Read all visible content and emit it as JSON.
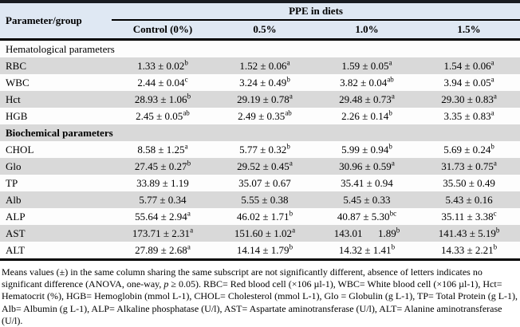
{
  "table": {
    "header": {
      "param_col": "Parameter/group",
      "group_title": "PPE in diets",
      "columns": [
        "Control (0%)",
        "0.5%",
        "1.0%",
        "1.5%"
      ]
    },
    "rows": [
      {
        "type": "section",
        "label": "Hematological parameters",
        "bold": false
      },
      {
        "type": "data",
        "param": "RBC",
        "cells": [
          {
            "text": "1.33 ± 0.02",
            "sup": "b"
          },
          {
            "text": "1.52 ± 0.06",
            "sup": "a"
          },
          {
            "text": "1.59 ± 0.05",
            "sup": "a"
          },
          {
            "text": "1.54 ± 0.06",
            "sup": "a"
          }
        ]
      },
      {
        "type": "data",
        "param": "WBC",
        "cells": [
          {
            "text": "2.44 ± 0.04",
            "sup": "c"
          },
          {
            "text": "3.24 ± 0.49",
            "sup": "b"
          },
          {
            "text": "3.82 ± 0.04",
            "sup": "ab"
          },
          {
            "text": "3.94 ± 0.05",
            "sup": "a"
          }
        ]
      },
      {
        "type": "data",
        "param": "Hct",
        "cells": [
          {
            "text": "28.93 ± 1.06",
            "sup": "b"
          },
          {
            "text": "29.19 ± 0.78",
            "sup": "a"
          },
          {
            "text": "29.48 ± 0.73",
            "sup": "a"
          },
          {
            "text": "29.30 ± 0.83",
            "sup": "a"
          }
        ]
      },
      {
        "type": "data",
        "param": "HGB",
        "cells": [
          {
            "text": "2.45 ± 0.05",
            "sup": "ab"
          },
          {
            "text": "2.49 ± 0.35",
            "sup": "ab"
          },
          {
            "text": "2.26 ± 0.14",
            "sup": "b"
          },
          {
            "text": "3.35 ± 0.83",
            "sup": "a"
          }
        ]
      },
      {
        "type": "section",
        "label": "Biochemical parameters",
        "bold": true
      },
      {
        "type": "data",
        "param": "CHOL",
        "cells": [
          {
            "text": "8.58 ± 1.25",
            "sup": "a"
          },
          {
            "text": "5.77 ± 0.32",
            "sup": "b"
          },
          {
            "text": "5.99 ± 0.94",
            "sup": "b"
          },
          {
            "text": "5.69 ± 0.24",
            "sup": "b"
          }
        ]
      },
      {
        "type": "data",
        "param": "Glo",
        "cells": [
          {
            "text": "27.45 ± 0.27",
            "sup": "b"
          },
          {
            "text": "29.52 ± 0.45",
            "sup": "a"
          },
          {
            "text": "30.96 ± 0.59",
            "sup": "a"
          },
          {
            "text": "31.73 ± 0.75",
            "sup": "a"
          }
        ]
      },
      {
        "type": "data",
        "param": "TP",
        "cells": [
          {
            "text": "33.89 ± 1.19",
            "sup": ""
          },
          {
            "text": "35.07 ± 0.67",
            "sup": ""
          },
          {
            "text": "35.41 ± 0.94",
            "sup": ""
          },
          {
            "text": "35.50 ± 0.49",
            "sup": ""
          }
        ]
      },
      {
        "type": "data",
        "param": "Alb",
        "cells": [
          {
            "text": "5.77 ± 0.34",
            "sup": ""
          },
          {
            "text": "5.55 ± 0.38",
            "sup": ""
          },
          {
            "text": "5.45 ± 0.33",
            "sup": ""
          },
          {
            "text": "5.43 ± 0.16",
            "sup": ""
          }
        ]
      },
      {
        "type": "data",
        "param": "ALP",
        "cells": [
          {
            "text": "55.64 ± 2.94",
            "sup": "a"
          },
          {
            "text": "46.02 ± 1.71",
            "sup": "b"
          },
          {
            "text": "40.87 ± 5.30",
            "sup": "bc"
          },
          {
            "text": "35.11 ± 3.38",
            "sup": "c"
          }
        ]
      },
      {
        "type": "data",
        "param": "AST",
        "cells": [
          {
            "text": "173.71 ± 2.31",
            "sup": "a"
          },
          {
            "text": "151.60 ± 1.02",
            "sup": "a"
          },
          {
            "text": "143.01      1.89",
            "sup": "b"
          },
          {
            "text": "141.43 ± 5.19",
            "sup": "b"
          }
        ]
      },
      {
        "type": "data",
        "param": "ALT",
        "cells": [
          {
            "text": "27.89 ± 2.68",
            "sup": "a"
          },
          {
            "text": "14.14 ± 1.79",
            "sup": "b"
          },
          {
            "text": "14.32 ± 1.41",
            "sup": "b"
          },
          {
            "text": "14.33 ± 2.21",
            "sup": "b"
          }
        ]
      }
    ],
    "colors": {
      "header_bg": "#dfe8f3",
      "row_stripe_gray": "#d9d9d9",
      "row_white": "#fdfdfd",
      "border": "#000000"
    }
  },
  "footnote": {
    "pre": "Means values (±) in the same column sharing the same subscript are not significantly different, absence of letters indicates no significant difference (ANOVA, one-way, ",
    "p_italic": "p",
    "post": " ≥ 0.05). RBC= Red blood cell (×106 µl-1), WBC= White blood cell (×106 µl-1), Hct= Hematocrit (%), HGB= Hemoglobin (mmol L-1), CHOL= Cholesterol (mmol L-1), Glo = Globulin (g L-1), TP= Total Protein (g L-1), Alb= Albumin (g L-1), ALP= Alkaline phosphatase (U/l), AST= Aspartate aminotransferase (U/l), ALT= Alanine aminotransferase (U/l)."
  }
}
